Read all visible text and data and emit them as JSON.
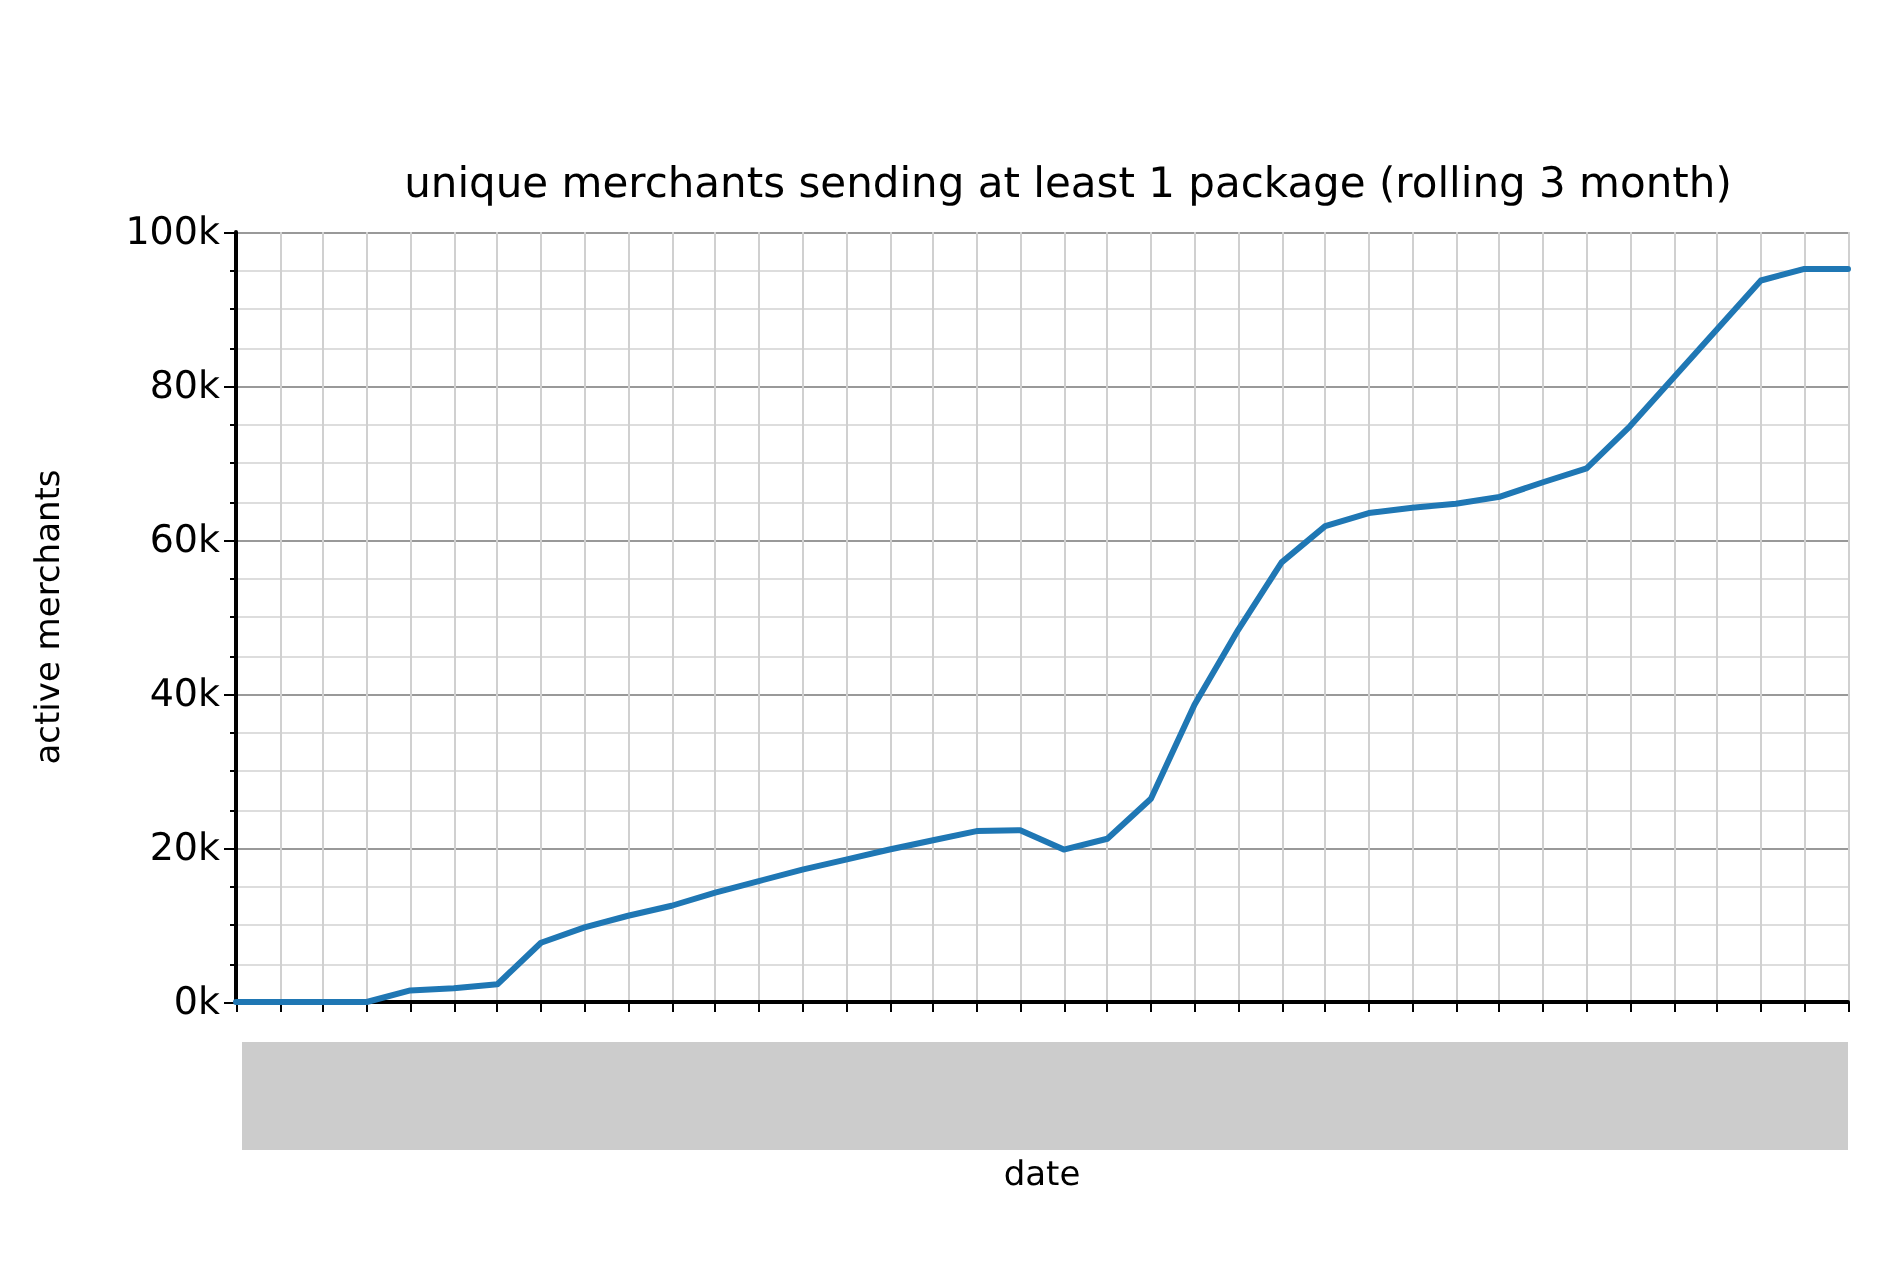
{
  "chart_data": {
    "type": "line",
    "title": "unique merchants sending at least 1 package (rolling 3 month)",
    "xlabel": "date",
    "ylabel": "active merchants",
    "categories": [
      null,
      null,
      null,
      null,
      null,
      null,
      null,
      null,
      null,
      null,
      null,
      null,
      null,
      null,
      null,
      null,
      null,
      null,
      null,
      null,
      null,
      null,
      null,
      null,
      null,
      null,
      null,
      null,
      null,
      null,
      null,
      null,
      null,
      null,
      null,
      null,
      null,
      null
    ],
    "series": [
      {
        "color": "#1f77b4",
        "values": [
          0,
          0,
          0,
          0,
          1500,
          1800,
          2300,
          7700,
          9700,
          11200,
          12500,
          14200,
          15700,
          17200,
          18500,
          19800,
          21000,
          22200,
          22300,
          19800,
          21200,
          26400,
          38600,
          48300,
          57100,
          61800,
          63500,
          64200,
          64700,
          65600,
          67500,
          69300,
          74800,
          81100,
          87400,
          93700,
          95200,
          95200
        ]
      }
    ],
    "ylim": [
      0,
      100000
    ],
    "yticks": [
      {
        "value": 0,
        "label": "0k"
      },
      {
        "value": 20000,
        "label": "20k"
      },
      {
        "value": 40000,
        "label": "40k"
      },
      {
        "value": 60000,
        "label": "60k"
      },
      {
        "value": 80000,
        "label": "80k"
      },
      {
        "value": 100000,
        "label": "100k"
      }
    ],
    "grid": true,
    "marker": "none",
    "line_style": "solid",
    "tick_labels": "y"
  }
}
